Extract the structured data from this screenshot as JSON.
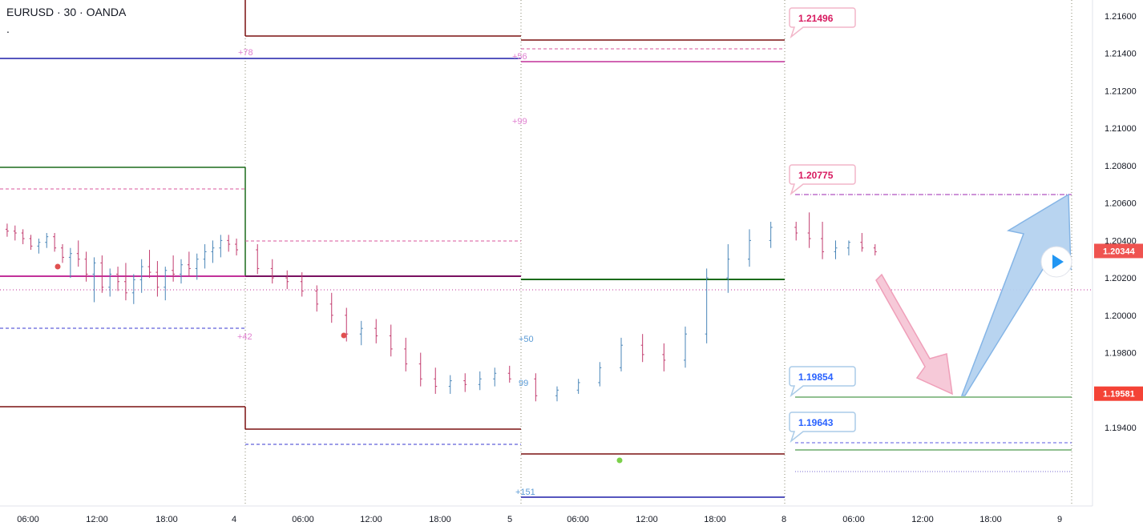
{
  "chart_data": {
    "type": "candlestick",
    "symbol_title": "EURUSD · 30 · OANDA",
    "title_extra": ".",
    "y_axis": {
      "ticks": [
        "1.21600",
        "1.21400",
        "1.21200",
        "1.21000",
        "1.20800",
        "1.20600",
        "1.20400",
        "1.20200",
        "1.20000",
        "1.19800",
        "1.19600",
        "1.19400"
      ],
      "range": [
        1.19328,
        1.21667
      ]
    },
    "x_axis": {
      "ticks": [
        "06:00",
        "12:00",
        "18:00",
        "4",
        "06:00",
        "12:00",
        "18:00",
        "5",
        "06:00",
        "12:00",
        "18:00",
        "8",
        "06:00",
        "12:00",
        "18:00",
        "9"
      ]
    },
    "price_labels": [
      {
        "value": "1.20344",
        "price": 1.20344,
        "color": "#ef5350"
      },
      {
        "value": "1.19581",
        "price": 1.19581,
        "color": "#f44336"
      }
    ],
    "callouts": [
      {
        "text": "1.21496",
        "price": 1.21496,
        "color": "#e91e63"
      },
      {
        "text": "1.20775",
        "price": 1.20775,
        "color": "#e91e63"
      },
      {
        "text": "1.19854",
        "price": 1.19854,
        "color": "#2962ff"
      },
      {
        "text": "1.19643",
        "price": 1.19643,
        "color": "#2962ff"
      }
    ],
    "small_labels": [
      {
        "text": "+78",
        "price": 1.2142,
        "color": "#e07fd0"
      },
      {
        "text": "+56",
        "price": 1.214,
        "color": "#e07fd0"
      },
      {
        "text": "+99",
        "price": 1.2114,
        "color": "#e07fd0"
      },
      {
        "text": "+42",
        "price": 1.20143,
        "color": "#e07fd0"
      },
      {
        "text": "+50",
        "price": 1.20105,
        "color": "#5b9bd5"
      },
      {
        "text": "99",
        "price": 1.19905,
        "color": "#5b9bd5"
      },
      {
        "text": "+151",
        "price": 1.19405,
        "color": "#5b9bd5"
      }
    ],
    "candles_ohlc_approx": [
      [
        1.2046,
        1.2049,
        1.2042,
        1.2045
      ],
      [
        1.2045,
        1.2048,
        1.204,
        1.2044
      ],
      [
        1.2044,
        1.2046,
        1.2038,
        1.2041
      ],
      [
        1.2041,
        1.2043,
        1.2035,
        1.2037
      ],
      [
        1.2037,
        1.2041,
        1.2033,
        1.2039
      ],
      [
        1.2039,
        1.2044,
        1.2036,
        1.2042
      ],
      [
        1.2042,
        1.2044,
        1.2034,
        1.2036
      ],
      [
        1.2036,
        1.2038,
        1.2028,
        1.2031
      ],
      [
        1.2031,
        1.2036,
        1.202,
        1.2033
      ],
      [
        1.2033,
        1.204,
        1.2026,
        1.203
      ],
      [
        1.203,
        1.2034,
        1.2018,
        1.2022
      ],
      [
        1.2022,
        1.2031,
        1.2007,
        1.2028
      ],
      [
        1.2028,
        1.2032,
        1.2012,
        1.2015
      ],
      [
        1.2015,
        1.2025,
        1.201,
        1.2022
      ],
      [
        1.2022,
        1.2026,
        1.2013,
        1.2018
      ],
      [
        1.2018,
        1.2028,
        1.2008,
        1.2012
      ],
      [
        1.2012,
        1.2022,
        1.2006,
        1.2019
      ],
      [
        1.2019,
        1.203,
        1.2012,
        1.2026
      ],
      [
        1.2026,
        1.2035,
        1.202,
        1.2023
      ],
      [
        1.2023,
        1.2029,
        1.201,
        1.2015
      ],
      [
        1.2015,
        1.2026,
        1.2008,
        1.2024
      ],
      [
        1.2024,
        1.2032,
        1.2018,
        1.2022
      ],
      [
        1.2022,
        1.203,
        1.2017,
        1.2027
      ],
      [
        1.2027,
        1.2034,
        1.2021,
        1.2025
      ],
      [
        1.2025,
        1.2033,
        1.2019,
        1.203
      ],
      [
        1.203,
        1.2038,
        1.2025,
        1.2034
      ],
      [
        1.2034,
        1.204,
        1.2028,
        1.2036
      ],
      [
        1.2036,
        1.2043,
        1.2031,
        1.204
      ],
      [
        1.204,
        1.2043,
        1.2034,
        1.2038
      ],
      [
        1.2038,
        1.2041,
        1.2032,
        1.2035
      ],
      [
        1.2035,
        1.2038,
        1.2022,
        1.2025
      ],
      [
        1.2025,
        1.203,
        1.2017,
        1.202
      ],
      [
        1.202,
        1.2024,
        1.2014,
        1.2018
      ],
      [
        1.2018,
        1.2023,
        1.201,
        1.2013
      ],
      [
        1.2013,
        1.2016,
        1.2002,
        1.2006
      ],
      [
        1.2006,
        1.2012,
        1.1996,
        1.2
      ],
      [
        1.2,
        1.2004,
        1.1986,
        1.199
      ],
      [
        1.199,
        1.1997,
        1.1984,
        1.1993
      ],
      [
        1.1993,
        1.1998,
        1.1985,
        1.1989
      ],
      [
        1.1989,
        1.1995,
        1.1978,
        1.1982
      ],
      [
        1.1982,
        1.1988,
        1.197,
        1.1974
      ],
      [
        1.1974,
        1.198,
        1.1962,
        1.1966
      ],
      [
        1.1966,
        1.1972,
        1.1958,
        1.1962
      ],
      [
        1.1962,
        1.1968,
        1.1958,
        1.1965
      ],
      [
        1.1965,
        1.1969,
        1.1959,
        1.1963
      ],
      [
        1.1963,
        1.197,
        1.196,
        1.1966
      ],
      [
        1.1966,
        1.1972,
        1.1962,
        1.1969
      ],
      [
        1.1969,
        1.1973,
        1.1964,
        1.1966
      ],
      [
        1.1966,
        1.1969,
        1.1954,
        1.1957
      ],
      [
        1.1957,
        1.1962,
        1.1954,
        1.196
      ],
      [
        1.196,
        1.1966,
        1.1958,
        1.1964
      ],
      [
        1.1964,
        1.1975,
        1.1962,
        1.1972
      ],
      [
        1.1972,
        1.1988,
        1.197,
        1.1984
      ],
      [
        1.1984,
        1.199,
        1.1975,
        1.1979
      ],
      [
        1.1979,
        1.1985,
        1.197,
        1.1976
      ],
      [
        1.1976,
        1.1994,
        1.1972,
        1.199
      ],
      [
        1.199,
        1.2025,
        1.1985,
        1.202
      ],
      [
        1.202,
        1.2038,
        1.2012,
        1.203
      ],
      [
        1.203,
        1.2046,
        1.2026,
        1.204
      ],
      [
        1.204,
        1.205,
        1.2036,
        1.2047
      ],
      [
        1.2047,
        1.205,
        1.204,
        1.2044
      ],
      [
        1.2044,
        1.2055,
        1.2036,
        1.2041
      ],
      [
        1.2041,
        1.205,
        1.203,
        1.2034
      ],
      [
        1.2034,
        1.204,
        1.203,
        1.2036
      ],
      [
        1.2036,
        1.204,
        1.2032,
        1.2039
      ],
      [
        1.2039,
        1.2044,
        1.2034,
        1.2036
      ],
      [
        1.2036,
        1.2038,
        1.2032,
        1.2034
      ]
    ]
  },
  "colors": {
    "up": "#4a86b8",
    "down": "#c23b6e",
    "grid": "#f0f3fa",
    "axis_text": "#131722"
  }
}
